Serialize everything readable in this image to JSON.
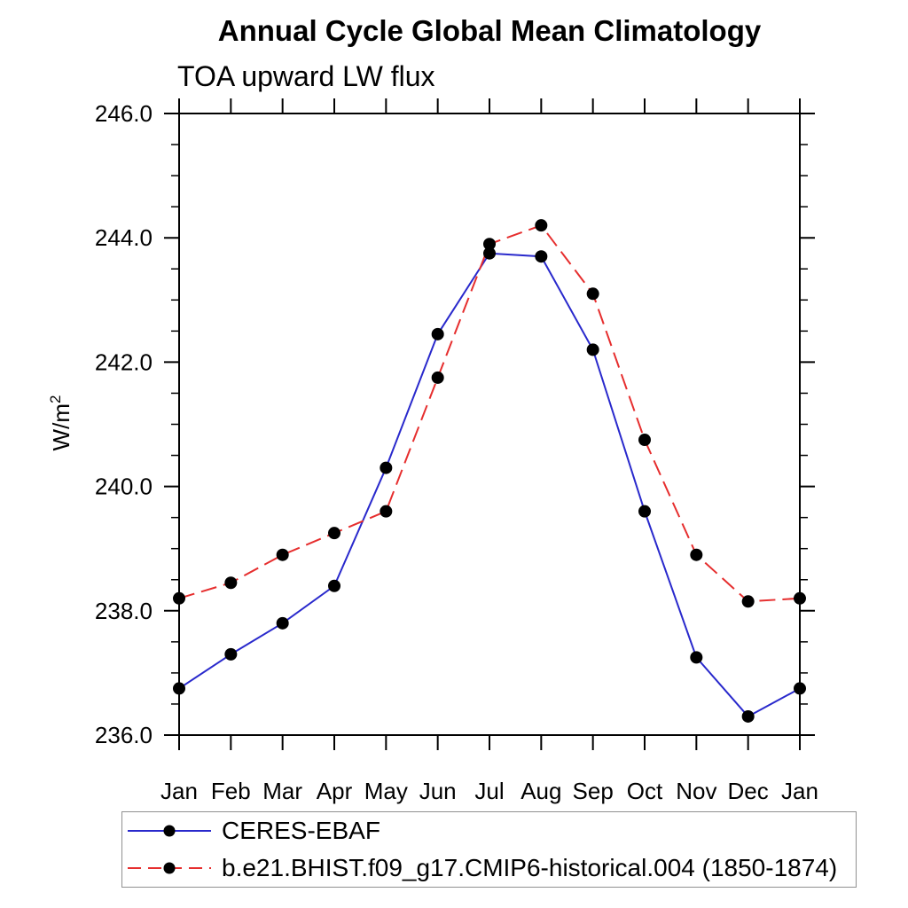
{
  "header": {
    "title": "Annual Cycle Global Mean Climatology",
    "subtitle": "TOA upward LW flux"
  },
  "axes": {
    "y_label_base": "W/m",
    "y_label_exponent": "2"
  },
  "chart_data": {
    "type": "line",
    "title": "Annual Cycle Global Mean Climatology",
    "subtitle": "TOA upward LW flux",
    "ylabel_base": "W/m",
    "ylabel_exponent": "2",
    "x_categories": [
      "Jan",
      "Feb",
      "Mar",
      "Apr",
      "May",
      "Jun",
      "Jul",
      "Aug",
      "Sep",
      "Oct",
      "Nov",
      "Dec",
      "Jan"
    ],
    "series": [
      {
        "name": "CERES-EBAF",
        "color": "#2929cc",
        "line_style": "solid",
        "marker": "filled-black-circle",
        "values": [
          236.75,
          237.3,
          237.8,
          238.4,
          240.3,
          242.45,
          243.75,
          243.7,
          242.2,
          239.6,
          237.25,
          236.3,
          236.75
        ]
      },
      {
        "name": "b.e21.BHIST.f09_g17.CMIP6-historical.004 (1850-1874)",
        "color": "#e62e2e",
        "line_style": "dashed",
        "marker": "filled-black-circle",
        "values": [
          238.2,
          238.45,
          238.9,
          239.25,
          239.6,
          241.75,
          243.9,
          244.2,
          243.1,
          240.75,
          238.9,
          238.15,
          238.2
        ]
      }
    ],
    "ylim": [
      236.0,
      246.0
    ],
    "ytick_major": [
      236.0,
      238.0,
      240.0,
      242.0,
      244.0,
      246.0
    ],
    "ytick_major_labels": [
      "236.0",
      "238.0",
      "240.0",
      "242.0",
      "244.0",
      "246.0"
    ],
    "ytick_minor_step": 0.5,
    "grid": false,
    "frame": "full-box-ticks-outward",
    "legend_position": "bottom-left"
  },
  "legend": {
    "items": [
      {
        "label": "CERES-EBAF",
        "key": "solid-blue-line-black-dot"
      },
      {
        "label": "b.e21.BHIST.f09_g17.CMIP6-historical.004 (1850-1874)",
        "key": "dashed-red-line-black-dot"
      }
    ]
  }
}
